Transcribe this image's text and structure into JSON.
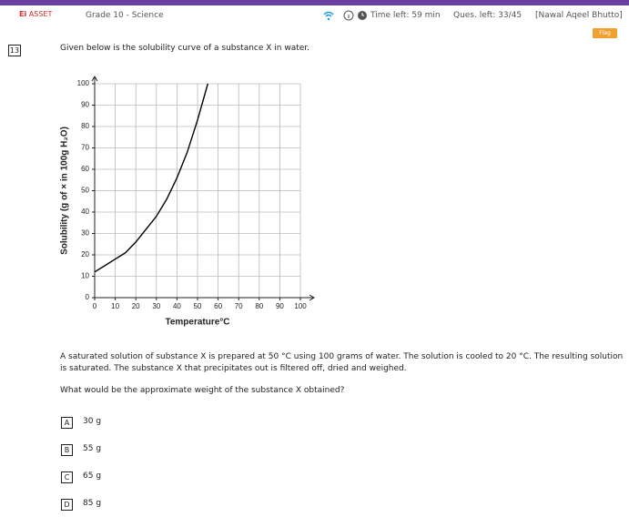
{
  "header": {
    "logo_mark": "Ei",
    "logo_text": "ASSET",
    "subject": "Grade 10 - Science",
    "time_left": "Time left: 59 min",
    "questions_left": "Ques. left: 33/45",
    "user": "[Nawal Aqeel Bhutto]",
    "flag": "Flag"
  },
  "question": {
    "number": "13",
    "intro": "Given below is the solubility curve of a substance X in water.",
    "body": "A saturated solution of substance X is prepared at 50 °C using 100 grams of water. The solution is cooled to 20 °C. The resulting solution is saturated. The substance X that precipitates out is filtered off, dried and weighed.",
    "prompt": "What would be the approximate weight of the substance X obtained?"
  },
  "chart_data": {
    "type": "line",
    "x_label": "Temperature°C",
    "y_label": "Solubility (g of × in 100g H₂O)",
    "x": [
      0,
      5,
      10,
      15,
      20,
      25,
      30,
      35,
      40,
      45,
      50,
      55
    ],
    "values": [
      12,
      15,
      18,
      21,
      26,
      32,
      38,
      46,
      56,
      68,
      83,
      100
    ],
    "color": "#000000",
    "grid": true,
    "xlim": [
      0,
      100
    ],
    "xticks": [
      0,
      10,
      20,
      30,
      40,
      50,
      60,
      70,
      80,
      90,
      100
    ],
    "ylim": [
      0,
      100
    ],
    "yticks": [
      0,
      10,
      20,
      30,
      40,
      50,
      60,
      70,
      80,
      90,
      100
    ]
  },
  "options": [
    {
      "letter": "A",
      "text": "30 g"
    },
    {
      "letter": "B",
      "text": "55 g"
    },
    {
      "letter": "C",
      "text": "65 g"
    },
    {
      "letter": "D",
      "text": "85 g"
    }
  ]
}
